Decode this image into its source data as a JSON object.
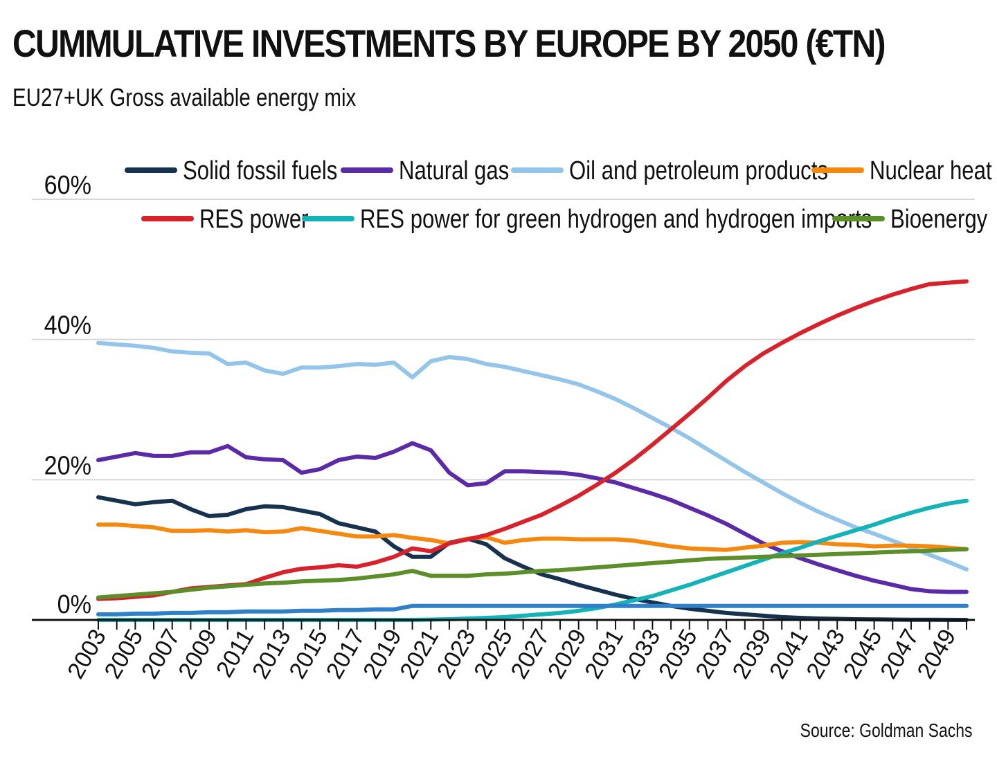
{
  "header": {
    "title": "CUMMULATIVE INVESTMENTS BY EUROPE BY 2050 (€TN)",
    "subtitle": "EU27+UK Gross available energy mix"
  },
  "footer": {
    "source": "Source: Goldman Sachs"
  },
  "chart_data": {
    "type": "line",
    "title": "CUMMULATIVE INVESTMENTS BY EUROPE BY 2050 (€TN)",
    "subtitle": "EU27+UK Gross available energy mix",
    "xlabel": "",
    "ylabel": "",
    "ylim": [
      0,
      60
    ],
    "yticks": [
      0,
      20,
      40,
      60
    ],
    "ytick_labels": [
      "0%",
      "20%",
      "40%",
      "60%"
    ],
    "x": [
      2003,
      2004,
      2005,
      2006,
      2007,
      2008,
      2009,
      2010,
      2011,
      2012,
      2013,
      2014,
      2015,
      2016,
      2017,
      2018,
      2019,
      2020,
      2021,
      2022,
      2023,
      2024,
      2025,
      2026,
      2027,
      2028,
      2029,
      2030,
      2031,
      2032,
      2033,
      2034,
      2035,
      2036,
      2037,
      2038,
      2039,
      2040,
      2041,
      2042,
      2043,
      2044,
      2045,
      2046,
      2047,
      2048,
      2049,
      2050
    ],
    "xtick_labels": [
      "2003",
      "2005",
      "2007",
      "2009",
      "2011",
      "2013",
      "2015",
      "2017",
      "2019",
      "2021",
      "2023",
      "2025",
      "2027",
      "2029",
      "2031",
      "2033",
      "2035",
      "2037",
      "2039",
      "2041",
      "2043",
      "2045",
      "2047",
      "2049"
    ],
    "grid": true,
    "legend_position": "top",
    "series": [
      {
        "name": "Solid fossil fuels",
        "color": "#17324f",
        "values": [
          17.5,
          17,
          16.5,
          16.8,
          17,
          15.8,
          14.8,
          15,
          15.8,
          16.2,
          16.1,
          15.6,
          15.1,
          13.8,
          13.2,
          12.6,
          10.5,
          9,
          9,
          11,
          11.6,
          10.8,
          8.8,
          7.6,
          6.5,
          5.8,
          5,
          4.3,
          3.6,
          3,
          2.5,
          2,
          1.6,
          1.3,
          1,
          0.8,
          0.6,
          0.4,
          0.3,
          0.2,
          0.15,
          0.1,
          0.08,
          0.05,
          0.03,
          0.02,
          0.01,
          0
        ]
      },
      {
        "name": "Natural gas",
        "color": "#5b2aa6",
        "values": [
          22.8,
          23.3,
          23.8,
          23.4,
          23.4,
          23.9,
          23.9,
          24.8,
          23.2,
          22.9,
          22.8,
          21,
          21.5,
          22.8,
          23.3,
          23.1,
          24,
          25.2,
          24.2,
          21,
          19.2,
          19.5,
          21.2,
          21.2,
          21.1,
          21,
          20.7,
          20.2,
          19.6,
          18.8,
          18,
          17.1,
          16,
          14.9,
          13.7,
          12.3,
          10.9,
          9.8,
          8.8,
          7.9,
          7.1,
          6.3,
          5.6,
          5,
          4.4,
          4.1,
          4,
          4
        ]
      },
      {
        "name": "Oil and petroleum products",
        "color": "#93c4ea",
        "values": [
          39.5,
          39.3,
          39.1,
          38.8,
          38.3,
          38.1,
          38,
          36.5,
          36.7,
          35.6,
          35.1,
          36,
          36,
          36.2,
          36.5,
          36.4,
          36.7,
          34.6,
          36.9,
          37.5,
          37.2,
          36.5,
          36.1,
          35.5,
          34.9,
          34.3,
          33.6,
          32.6,
          31.5,
          30.2,
          28.8,
          27.4,
          25.9,
          24.3,
          22.7,
          21.1,
          19.6,
          18.1,
          16.7,
          15.4,
          14.3,
          13.2,
          12.3,
          11.3,
          10.3,
          9.3,
          8.3,
          7.2
        ]
      },
      {
        "name": "Nuclear heat",
        "color": "#f5890f",
        "values": [
          13.6,
          13.6,
          13.4,
          13.2,
          12.7,
          12.7,
          12.8,
          12.6,
          12.8,
          12.5,
          12.6,
          13.1,
          12.7,
          12.3,
          11.9,
          11.9,
          12.1,
          11.7,
          11.4,
          10.9,
          11.6,
          11.8,
          11,
          11.4,
          11.6,
          11.6,
          11.5,
          11.5,
          11.5,
          11.3,
          10.9,
          10.5,
          10.2,
          10.1,
          10,
          10.3,
          10.6,
          11,
          11.1,
          11,
          10.8,
          10.7,
          10.5,
          10.6,
          10.6,
          10.5,
          10.3,
          10.1
        ]
      },
      {
        "name": "RES power",
        "color": "#d7212b",
        "values": [
          3,
          3.1,
          3.3,
          3.5,
          4,
          4.5,
          4.7,
          4.9,
          5.1,
          6,
          6.8,
          7.3,
          7.5,
          7.8,
          7.6,
          8.2,
          9,
          10.2,
          9.8,
          10.9,
          11.5,
          12.1,
          13,
          14,
          15,
          16.3,
          17.7,
          19.3,
          21,
          22.9,
          25,
          27.2,
          29.4,
          31.7,
          34.1,
          36.2,
          38,
          39.5,
          40.9,
          42.2,
          43.4,
          44.5,
          45.5,
          46.4,
          47.2,
          47.9,
          48.1,
          48.3
        ]
      },
      {
        "name": "RES power for green hydrogen and hydrogen imports",
        "color": "#15b3b8",
        "values": [
          0,
          0,
          0,
          0,
          0,
          0,
          0,
          0,
          0,
          0,
          0,
          0,
          0,
          0,
          0,
          0,
          0,
          0,
          0.05,
          0.1,
          0.2,
          0.3,
          0.4,
          0.6,
          0.8,
          1,
          1.3,
          1.7,
          2.2,
          2.8,
          3.4,
          4.2,
          5,
          5.9,
          6.8,
          7.7,
          8.6,
          9.5,
          10.3,
          11.2,
          12,
          12.8,
          13.6,
          14.5,
          15.3,
          16,
          16.6,
          17
        ]
      },
      {
        "name": "Bioenergy",
        "color": "#5c8e2a",
        "values": [
          3.2,
          3.4,
          3.6,
          3.8,
          4,
          4.3,
          4.6,
          4.8,
          5,
          5.2,
          5.3,
          5.5,
          5.6,
          5.7,
          5.9,
          6.2,
          6.5,
          7,
          6.3,
          6.3,
          6.3,
          6.5,
          6.6,
          6.8,
          7,
          7.1,
          7.3,
          7.5,
          7.7,
          7.9,
          8.1,
          8.3,
          8.5,
          8.7,
          8.8,
          8.9,
          9,
          9.1,
          9.2,
          9.3,
          9.4,
          9.5,
          9.6,
          9.7,
          9.8,
          9.9,
          10,
          10.1
        ]
      },
      {
        "name": "",
        "color": "#2f80c8",
        "values": [
          0.8,
          0.8,
          0.9,
          0.9,
          1,
          1,
          1.1,
          1.1,
          1.2,
          1.2,
          1.2,
          1.3,
          1.3,
          1.4,
          1.4,
          1.5,
          1.5,
          2,
          2,
          2,
          2,
          2,
          2,
          2,
          2,
          2,
          2,
          2,
          2,
          2,
          2,
          2,
          2,
          2,
          2,
          2,
          2,
          2,
          2,
          2,
          2,
          2,
          2,
          2,
          2,
          2,
          2,
          2
        ]
      }
    ]
  }
}
